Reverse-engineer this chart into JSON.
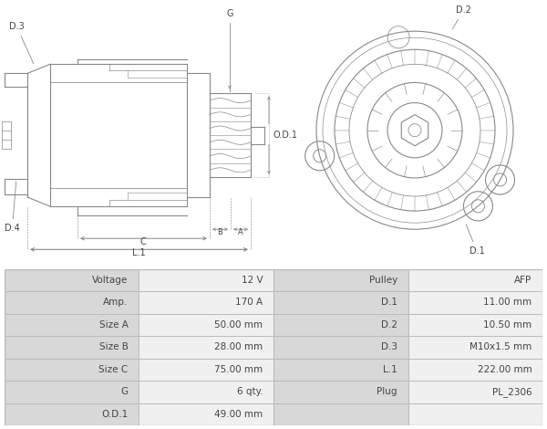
{
  "bg_color": "#ffffff",
  "border_color": "#aaaaaa",
  "table_data": [
    [
      "Voltage",
      "12 V",
      "Pulley",
      "AFP"
    ],
    [
      "Amp.",
      "170 A",
      "D.1",
      "11.00 mm"
    ],
    [
      "Size A",
      "50.00 mm",
      "D.2",
      "10.50 mm"
    ],
    [
      "Size B",
      "28.00 mm",
      "D.3",
      "M10x1.5 mm"
    ],
    [
      "Size C",
      "75.00 mm",
      "L.1",
      "222.00 mm"
    ],
    [
      "G",
      "6 qty.",
      "Plug",
      "PL_2306"
    ],
    [
      "O.D.1",
      "49.00 mm",
      "",
      ""
    ]
  ],
  "line_color": "#888888",
  "text_color": "#444444",
  "diagram_bg": "#ffffff",
  "col_bg_label": "#d8d8d8",
  "col_bg_val": "#f0f0f0",
  "border_c": "#bbbbbb"
}
